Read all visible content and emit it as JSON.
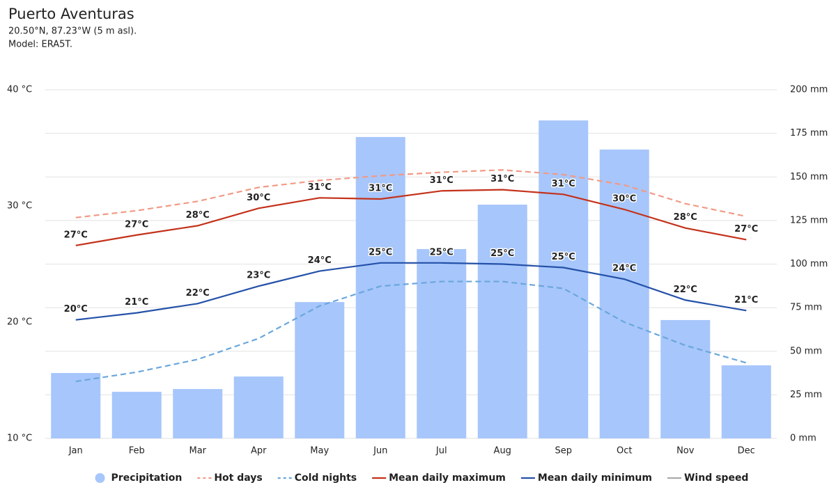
{
  "chart_data": {
    "type": "combo",
    "title": "Puerto Aventuras",
    "subtitle": [
      "20.50°N, 87.23°W (5 m asl).",
      "Model: ERA5T."
    ],
    "categories": [
      "Jan",
      "Feb",
      "Mar",
      "Apr",
      "May",
      "Jun",
      "Jul",
      "Aug",
      "Sep",
      "Oct",
      "Nov",
      "Dec"
    ],
    "ylim": [
      10,
      40
    ],
    "yticks": [
      {
        "value": 10,
        "label": "10 °C"
      },
      {
        "value": 20,
        "label": "20 °C"
      },
      {
        "value": 30,
        "label": "30 °C"
      },
      {
        "value": 40,
        "label": "40 °C"
      }
    ],
    "y2lim": [
      0,
      200
    ],
    "y2ticks": [
      {
        "value": 0,
        "label": "0 mm"
      },
      {
        "value": 25,
        "label": "25 mm"
      },
      {
        "value": 50,
        "label": "50 mm"
      },
      {
        "value": 75,
        "label": "75 mm"
      },
      {
        "value": 100,
        "label": "100 mm"
      },
      {
        "value": 125,
        "label": "125 mm"
      },
      {
        "value": 150,
        "label": "150 mm"
      },
      {
        "value": 175,
        "label": "175 mm"
      },
      {
        "value": 200,
        "label": "200 mm"
      }
    ],
    "grid": true,
    "legend": "bottom",
    "series": [
      {
        "name": "Precipitation",
        "type": "bar",
        "axis": "y2",
        "color": "#a7c6fb",
        "values": [
          37.5,
          26.7,
          28.3,
          35.5,
          78.2,
          172.9,
          108.6,
          134.1,
          182.4,
          165.7,
          67.9,
          41.9
        ]
      },
      {
        "name": "Hot days",
        "type": "line",
        "dash": true,
        "color": "#f19a86",
        "values": [
          29.0,
          29.6,
          30.4,
          31.6,
          32.2,
          32.6,
          32.9,
          33.1,
          32.7,
          31.8,
          30.2,
          29.1
        ]
      },
      {
        "name": "Cold nights",
        "type": "line",
        "dash": true,
        "color": "#6aa7dc",
        "values": [
          14.9,
          15.7,
          16.8,
          18.6,
          21.4,
          23.1,
          23.5,
          23.5,
          22.9,
          20.0,
          18.0,
          16.5
        ]
      },
      {
        "name": "Mean daily maximum",
        "type": "line",
        "color": "#c4311a",
        "values": [
          26.6,
          27.5,
          28.3,
          29.8,
          30.7,
          30.6,
          31.3,
          31.4,
          31.0,
          29.7,
          28.1,
          27.1
        ],
        "value_labels": [
          "27°C",
          "27°C",
          "28°C",
          "30°C",
          "31°C",
          "31°C",
          "31°C",
          "31°C",
          "31°C",
          "30°C",
          "28°C",
          "27°C"
        ]
      },
      {
        "name": "Mean daily minimum",
        "type": "line",
        "color": "#2451a8",
        "values": [
          20.2,
          20.8,
          21.6,
          23.1,
          24.4,
          25.1,
          25.1,
          25.0,
          24.7,
          23.7,
          21.9,
          21.0
        ],
        "value_labels": [
          "20°C",
          "21°C",
          "22°C",
          "23°C",
          "24°C",
          "25°C",
          "25°C",
          "25°C",
          "25°C",
          "24°C",
          "22°C",
          "21°C"
        ]
      }
    ],
    "inactive_legend": [
      {
        "name": "Wind speed",
        "color": "#aaaaaa"
      }
    ]
  }
}
